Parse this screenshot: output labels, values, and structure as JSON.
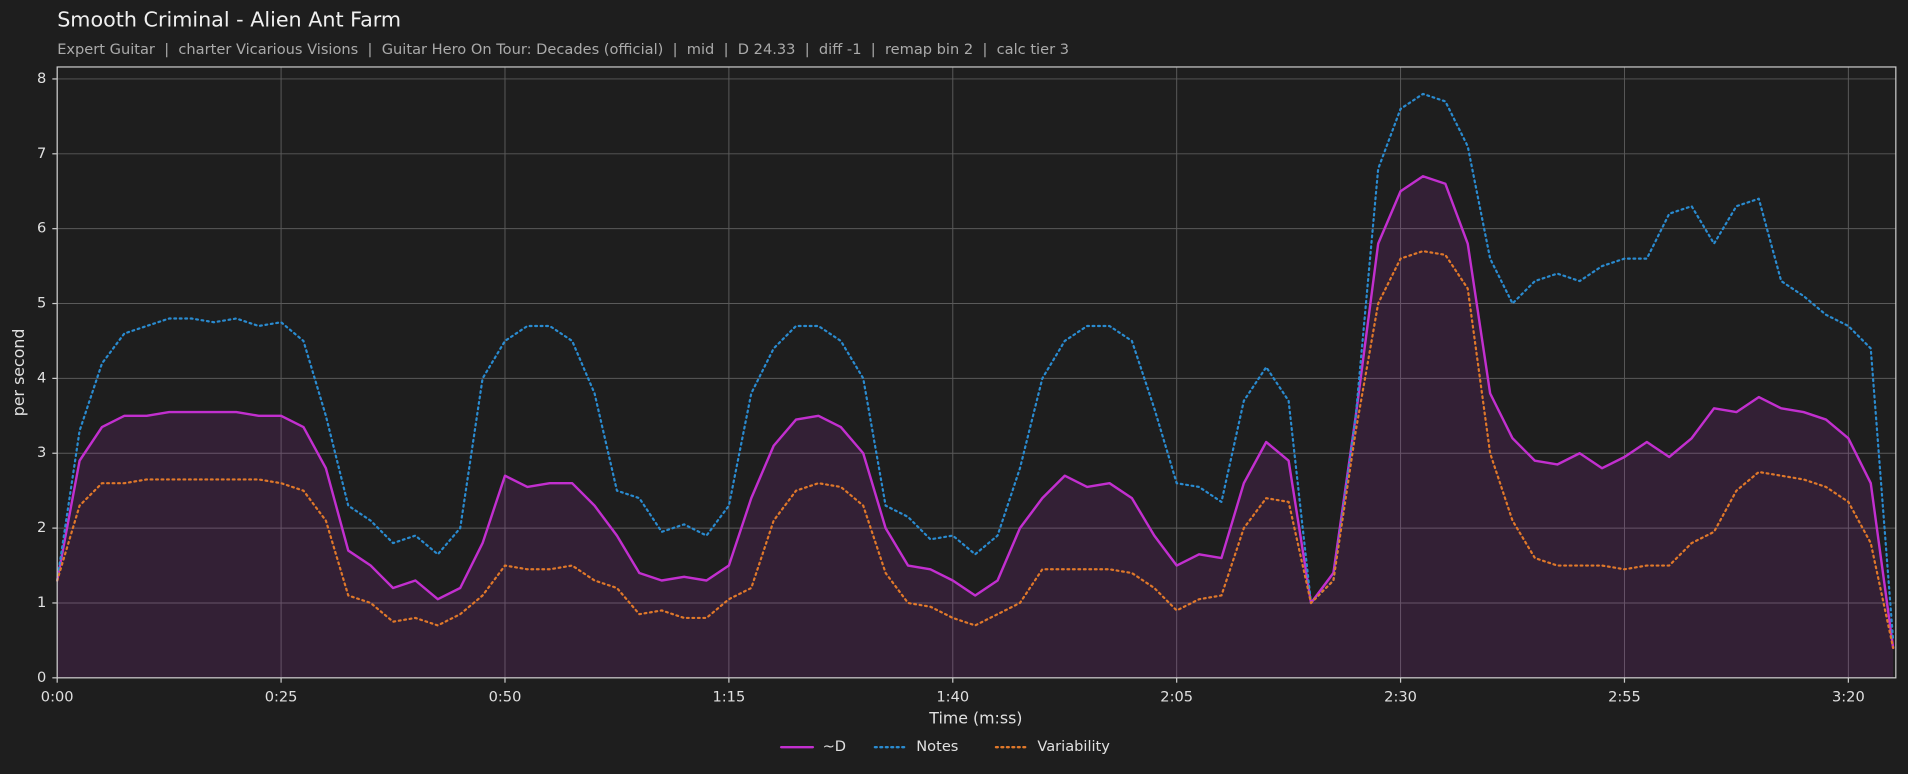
{
  "chart_data": {
    "type": "line",
    "title": "Smooth Criminal - Alien Ant Farm",
    "subtitle": "Expert Guitar  |  charter Vicarious Visions  |  Guitar Hero On Tour: Decades (official)  |  mid  |  D 24.33  |  diff -1  |  remap bin 2  |  calc tier 3",
    "x_label": "Time (m:ss)",
    "y_label": "per second",
    "grid": true,
    "legend": "bottom",
    "xlim": [
      0,
      205.3
    ],
    "ylim": [
      0,
      8.16
    ],
    "xticks": [
      {
        "value": 0,
        "label": "0:00"
      },
      {
        "value": 25,
        "label": "0:25"
      },
      {
        "value": 50,
        "label": "0:50"
      },
      {
        "value": 75,
        "label": "1:15"
      },
      {
        "value": 100,
        "label": "1:40"
      },
      {
        "value": 125,
        "label": "2:05"
      },
      {
        "value": 150,
        "label": "2:30"
      },
      {
        "value": 175,
        "label": "2:55"
      },
      {
        "value": 200,
        "label": "3:20"
      }
    ],
    "yticks": [
      0,
      1,
      2,
      3,
      4,
      5,
      6,
      7,
      8
    ],
    "x": [
      0,
      2.5,
      5,
      7.5,
      10,
      12.5,
      15,
      17.5,
      20,
      22.5,
      25,
      27.5,
      30,
      32.5,
      35,
      37.5,
      40,
      42.5,
      45,
      47.5,
      50,
      52.5,
      55,
      57.5,
      60,
      62.5,
      65,
      67.5,
      70,
      72.5,
      75,
      77.5,
      80,
      82.5,
      85,
      87.5,
      90,
      92.5,
      95,
      97.5,
      100,
      102.5,
      105,
      107.5,
      110,
      112.5,
      115,
      117.5,
      120,
      122.5,
      125,
      127.5,
      130,
      132.5,
      135,
      137.5,
      140,
      142.5,
      145,
      147.5,
      150,
      152.5,
      155,
      157.5,
      160,
      162.5,
      165,
      167.5,
      170,
      172.5,
      175,
      177.5,
      180,
      182.5,
      185,
      187.5,
      190,
      192.5,
      195,
      197.5,
      200,
      202.5,
      205
    ],
    "series": [
      {
        "name": "~D",
        "color": "#c22fcf",
        "dash": "solid",
        "fill": true,
        "values": [
          1.3,
          2.9,
          3.35,
          3.5,
          3.5,
          3.55,
          3.55,
          3.55,
          3.55,
          3.5,
          3.5,
          3.35,
          2.8,
          1.7,
          1.5,
          1.2,
          1.3,
          1.05,
          1.2,
          1.8,
          2.7,
          2.55,
          2.6,
          2.6,
          2.3,
          1.9,
          1.4,
          1.3,
          1.35,
          1.3,
          1.5,
          2.4,
          3.1,
          3.45,
          3.5,
          3.35,
          3.0,
          2.0,
          1.5,
          1.45,
          1.3,
          1.1,
          1.3,
          2.0,
          2.4,
          2.7,
          2.55,
          2.6,
          2.4,
          1.9,
          1.5,
          1.65,
          1.6,
          2.6,
          3.15,
          2.9,
          1.0,
          1.4,
          3.5,
          5.8,
          6.5,
          6.7,
          6.6,
          5.8,
          3.8,
          3.2,
          2.9,
          2.85,
          3.0,
          2.8,
          2.95,
          3.15,
          2.95,
          3.2,
          3.6,
          3.55,
          3.75,
          3.6,
          3.55,
          3.45,
          3.2,
          2.6,
          0.4
        ]
      },
      {
        "name": "Notes",
        "color": "#2a8bd0",
        "dash": "dotted",
        "fill": false,
        "values": [
          1.3,
          3.3,
          4.2,
          4.6,
          4.7,
          4.8,
          4.8,
          4.75,
          4.8,
          4.7,
          4.75,
          4.5,
          3.5,
          2.3,
          2.1,
          1.8,
          1.9,
          1.65,
          2.0,
          4.0,
          4.5,
          4.7,
          4.7,
          4.5,
          3.8,
          2.5,
          2.4,
          1.95,
          2.05,
          1.9,
          2.3,
          3.8,
          4.4,
          4.7,
          4.7,
          4.5,
          4.0,
          2.3,
          2.15,
          1.85,
          1.9,
          1.65,
          1.9,
          2.8,
          4.0,
          4.5,
          4.7,
          4.7,
          4.5,
          3.6,
          2.6,
          2.55,
          2.35,
          3.7,
          4.15,
          3.7,
          1.0,
          1.3,
          3.5,
          6.8,
          7.6,
          7.8,
          7.7,
          7.1,
          5.6,
          5.0,
          5.3,
          5.4,
          5.3,
          5.5,
          5.6,
          5.6,
          6.2,
          6.3,
          5.8,
          6.3,
          6.4,
          5.3,
          5.1,
          4.85,
          4.7,
          4.4,
          0.5
        ]
      },
      {
        "name": "Variability",
        "color": "#e0782a",
        "dash": "dotted",
        "fill": false,
        "values": [
          1.3,
          2.3,
          2.6,
          2.6,
          2.65,
          2.65,
          2.65,
          2.65,
          2.65,
          2.65,
          2.6,
          2.5,
          2.1,
          1.1,
          1.0,
          0.75,
          0.8,
          0.7,
          0.85,
          1.1,
          1.5,
          1.45,
          1.45,
          1.5,
          1.3,
          1.2,
          0.85,
          0.9,
          0.8,
          0.8,
          1.05,
          1.2,
          2.1,
          2.5,
          2.6,
          2.55,
          2.3,
          1.4,
          1.0,
          0.95,
          0.8,
          0.7,
          0.85,
          1.0,
          1.45,
          1.45,
          1.45,
          1.45,
          1.4,
          1.2,
          0.9,
          1.05,
          1.1,
          2.0,
          2.4,
          2.35,
          1.0,
          1.3,
          3.3,
          5.0,
          5.6,
          5.7,
          5.65,
          5.2,
          3.0,
          2.1,
          1.6,
          1.5,
          1.5,
          1.5,
          1.45,
          1.5,
          1.5,
          1.8,
          1.95,
          2.5,
          2.75,
          2.7,
          2.65,
          2.55,
          2.35,
          1.8,
          0.4
        ]
      }
    ]
  }
}
